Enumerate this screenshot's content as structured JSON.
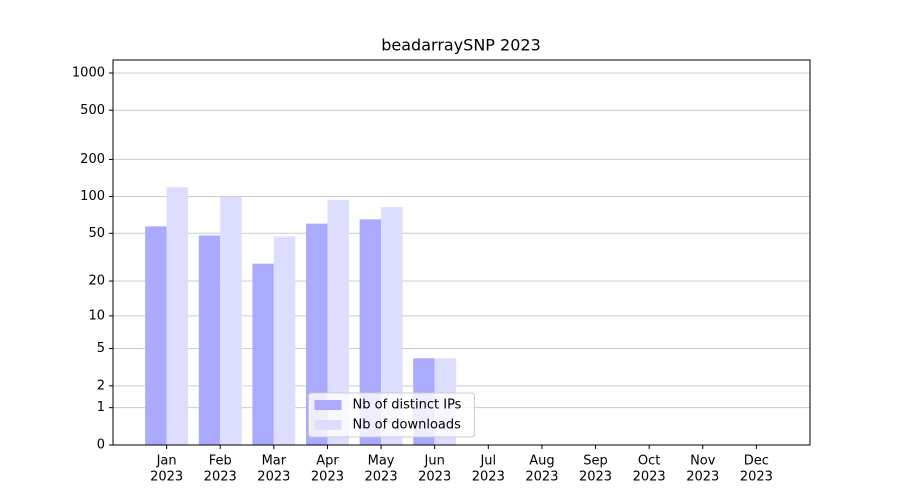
{
  "chart_data": {
    "type": "bar",
    "title": "beadarraySNP 2023",
    "categories": [
      [
        "Jan",
        "2023"
      ],
      [
        "Feb",
        "2023"
      ],
      [
        "Mar",
        "2023"
      ],
      [
        "Apr",
        "2023"
      ],
      [
        "May",
        "2023"
      ],
      [
        "Jun",
        "2023"
      ],
      [
        "Jul",
        "2023"
      ],
      [
        "Aug",
        "2023"
      ],
      [
        "Sep",
        "2023"
      ],
      [
        "Oct",
        "2023"
      ],
      [
        "Nov",
        "2023"
      ],
      [
        "Dec",
        "2023"
      ]
    ],
    "series": [
      {
        "name": "Nb of distinct IPs",
        "color": "#aaaaff",
        "values": [
          57,
          48,
          28,
          60,
          65,
          4,
          0,
          0,
          0,
          0,
          0,
          0
        ]
      },
      {
        "name": "Nb of downloads",
        "color": "#ddddff",
        "values": [
          119,
          99,
          47,
          94,
          82,
          4,
          0,
          0,
          0,
          0,
          0,
          0
        ]
      }
    ],
    "yscale": "log1p",
    "ylim": [
      0,
      1273
    ],
    "yticks": [
      0,
      1,
      2,
      5,
      10,
      20,
      50,
      100,
      200,
      500,
      1000
    ],
    "grid": true,
    "legend": "lower center"
  }
}
